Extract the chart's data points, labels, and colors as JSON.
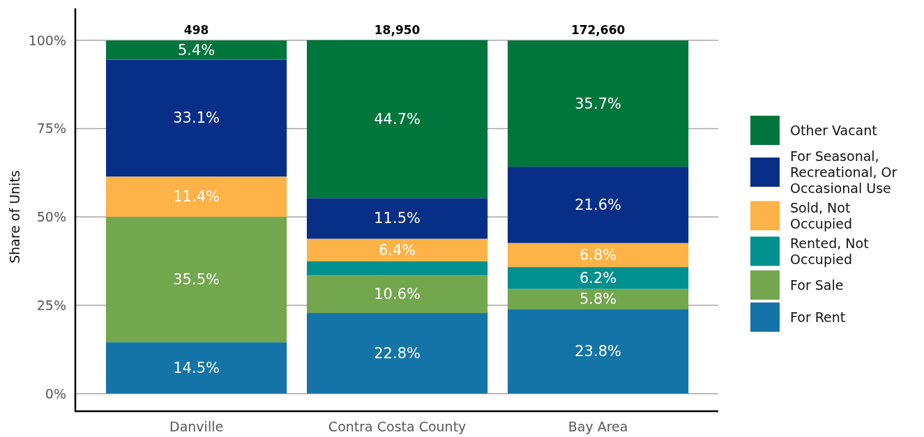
{
  "chart_data": {
    "type": "bar",
    "stacked": true,
    "ylabel": "Share of Units",
    "categories": [
      "Danville",
      "Contra Costa County",
      "Bay Area"
    ],
    "series": [
      {
        "name": "For Rent",
        "color": "#1474a8",
        "values": [
          14.5,
          22.8,
          23.8
        ],
        "value_labels": [
          "14.5%",
          "22.8%",
          "23.8%"
        ]
      },
      {
        "name": "For Sale",
        "color": "#72a74e",
        "values": [
          35.5,
          10.6,
          5.8
        ],
        "value_labels": [
          "35.5%",
          "10.6%",
          "5.8%"
        ]
      },
      {
        "name": "Rented, Not Occupied",
        "color": "#00918f",
        "values": [
          null,
          4.0,
          6.2
        ],
        "value_labels": [
          null,
          null,
          "6.2%"
        ]
      },
      {
        "name": "Sold, Not Occupied",
        "color": "#fdb347",
        "values": [
          11.4,
          6.4,
          6.8
        ],
        "value_labels": [
          "11.4%",
          "6.4%",
          "6.8%"
        ]
      },
      {
        "name": "For Seasonal, Recreational, Or Occasional Use",
        "color": "#072f87",
        "values": [
          33.1,
          11.5,
          21.6
        ],
        "value_labels": [
          "33.1%",
          "11.5%",
          "21.6%"
        ]
      },
      {
        "name": "Other Vacant",
        "color": "#00763d",
        "values": [
          5.4,
          44.7,
          35.7
        ],
        "value_labels": [
          "5.4%",
          "44.7%",
          "35.7%"
        ]
      }
    ],
    "annotations": [
      {
        "text": "498",
        "x": "Danville",
        "y": 100
      },
      {
        "text": "18,950",
        "x": "Contra Costa County",
        "y": 100
      },
      {
        "text": "172,660",
        "x": "Bay Area",
        "y": 100
      }
    ],
    "ylim": [
      -5,
      109
    ],
    "yticks": [
      {
        "value": 0,
        "label": "0%"
      },
      {
        "value": 25,
        "label": "25%"
      },
      {
        "value": 50,
        "label": "50%"
      },
      {
        "value": 75,
        "label": "75%"
      },
      {
        "value": 100,
        "label": "100%"
      }
    ],
    "grid": "y",
    "legend": "right"
  }
}
